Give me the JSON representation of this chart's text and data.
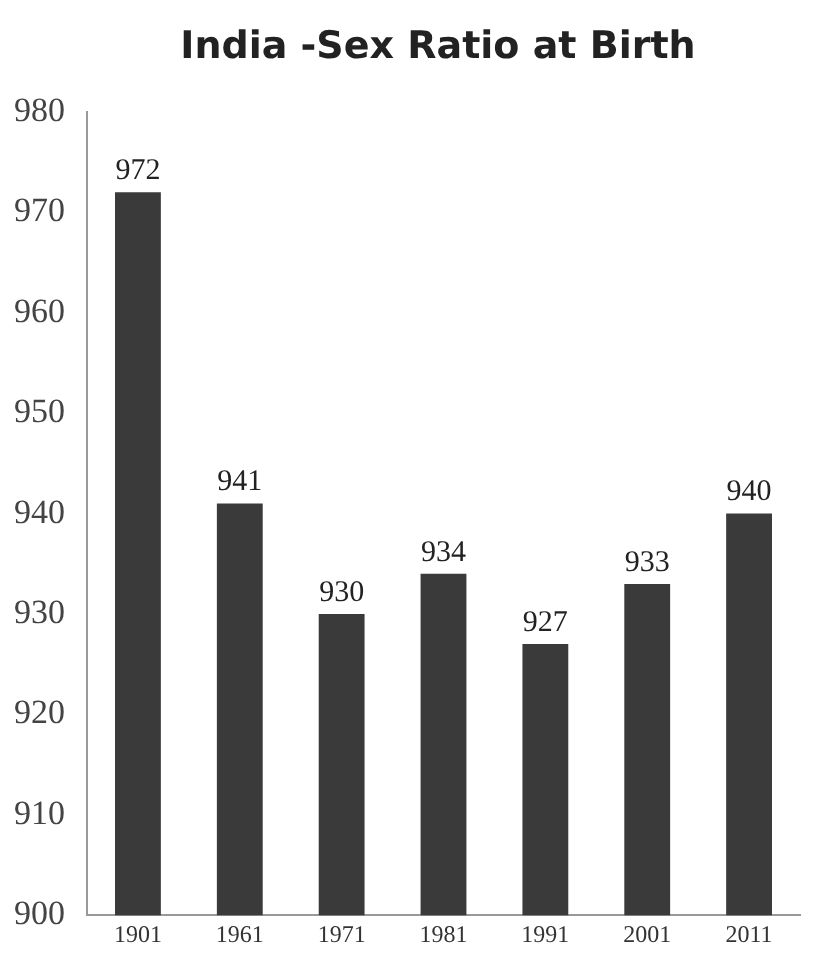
{
  "chart_data": {
    "type": "bar",
    "title": "India -Sex Ratio at Birth",
    "categories": [
      "1901",
      "1961",
      "1971",
      "1981",
      "1991",
      "2001",
      "2011"
    ],
    "values": [
      972,
      941,
      930,
      934,
      927,
      933,
      940
    ],
    "color": "#3a3a3a",
    "ylim": [
      900,
      980
    ],
    "yticks": [
      900,
      910,
      920,
      930,
      940,
      950,
      960,
      970,
      980
    ],
    "grid": false,
    "data_labels": true
  }
}
